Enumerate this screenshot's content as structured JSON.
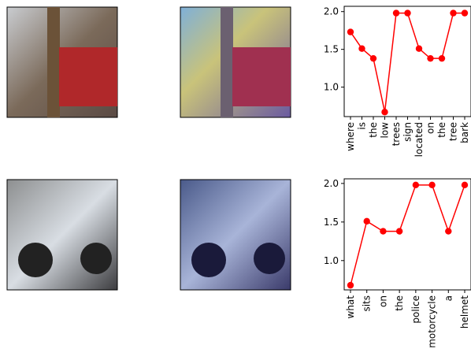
{
  "chart_data": [
    {
      "type": "line",
      "categories": [
        "where",
        "is",
        "the",
        "low",
        "trees",
        "sign",
        "located",
        "on",
        "the",
        "tree",
        "bark"
      ],
      "series": [
        {
          "color": "#ff0000",
          "values": [
            1.73,
            1.51,
            1.38,
            0.67,
            1.98,
            1.98,
            1.51,
            1.38,
            1.38,
            1.98,
            1.98
          ]
        }
      ],
      "ylim": [
        0.61,
        2.07
      ],
      "yticks": [
        {
          "value": 1,
          "label": "1.0"
        },
        1.5,
        {
          "value": 2,
          "label": "2.0"
        }
      ]
    },
    {
      "type": "line",
      "categories": [
        "what",
        "sits",
        "on",
        "the",
        "police",
        "motorcycle",
        "a",
        "helmet"
      ],
      "series": [
        {
          "color": "#ff0000",
          "values": [
            0.68,
            1.51,
            1.38,
            1.38,
            1.98,
            1.98,
            1.38,
            1.98
          ]
        }
      ],
      "ylim": [
        0.62,
        2.06
      ],
      "yticks": [
        {
          "value": 1,
          "label": "1.0"
        },
        1.5,
        {
          "value": 2,
          "label": "2.0"
        }
      ]
    }
  ]
}
